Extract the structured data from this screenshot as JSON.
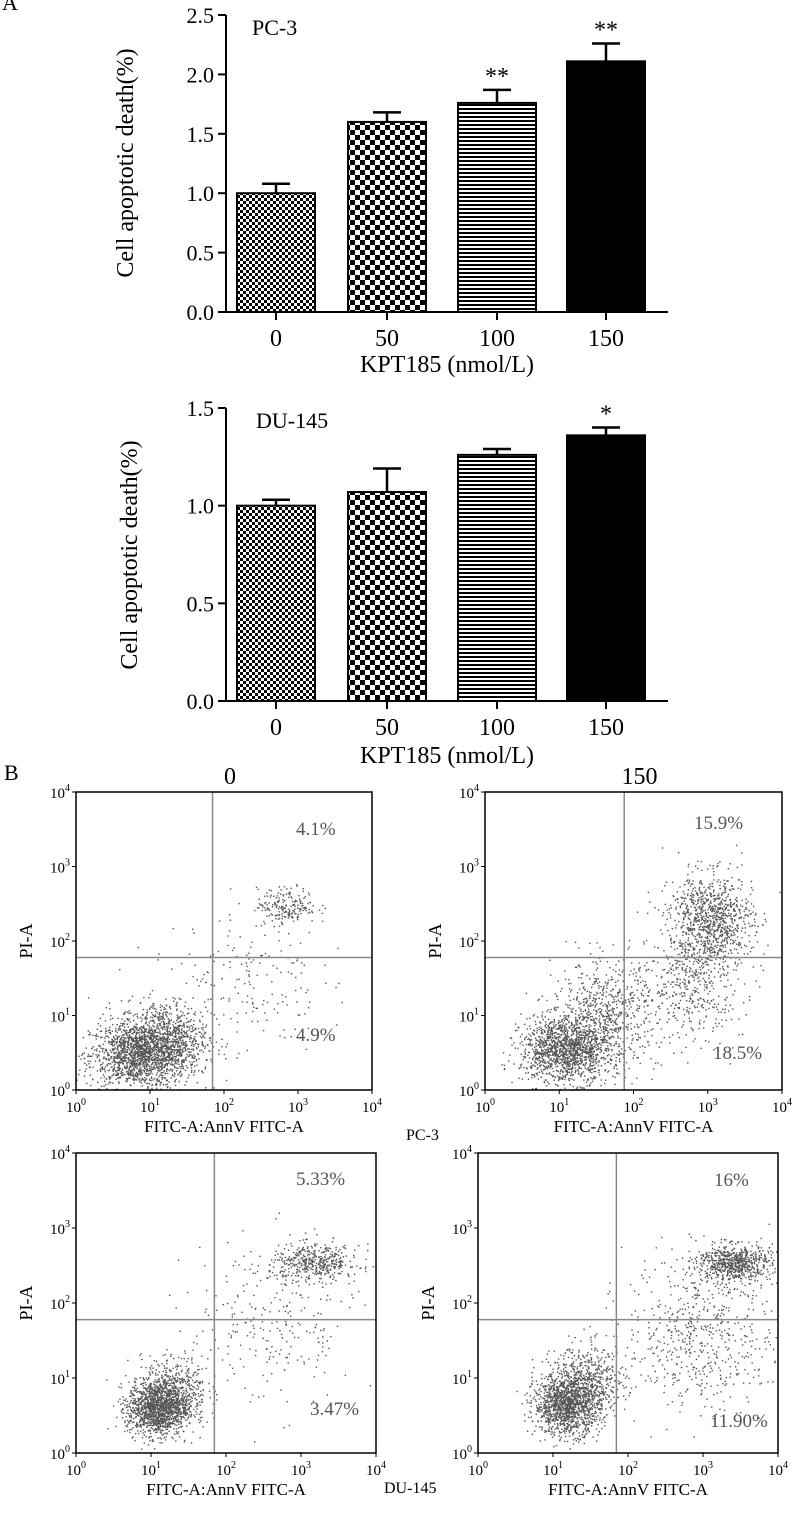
{
  "panel_labels": {
    "a": "A",
    "b": "B"
  },
  "chart_data": [
    {
      "type": "bar",
      "title": "PC-3",
      "xlabel": "KPT185 (nmol/L)",
      "ylabel": "Cell apoptotic death(%)",
      "categories": [
        "0",
        "50",
        "100",
        "150"
      ],
      "values": [
        1.0,
        1.6,
        1.76,
        2.11
      ],
      "errors": [
        0.08,
        0.08,
        0.11,
        0.15
      ],
      "significance": [
        "",
        "",
        "**",
        "**"
      ],
      "patterns": [
        "dense-checker",
        "checker",
        "horizontal-lines",
        "solid"
      ],
      "ylim": [
        0,
        2.5
      ],
      "yticks": [
        "0.0",
        "0.5",
        "1.0",
        "1.5",
        "2.0",
        "2.5"
      ],
      "grid": false
    },
    {
      "type": "bar",
      "title": "DU-145",
      "xlabel": "KPT185 (nmol/L)",
      "ylabel": "Cell apoptotic death(%)",
      "categories": [
        "0",
        "50",
        "100",
        "150"
      ],
      "values": [
        1.0,
        1.07,
        1.26,
        1.36
      ],
      "errors": [
        0.03,
        0.12,
        0.03,
        0.04
      ],
      "significance": [
        "",
        "",
        "",
        "*"
      ],
      "patterns": [
        "dense-checker",
        "checker",
        "horizontal-lines",
        "solid"
      ],
      "ylim": [
        0,
        1.5
      ],
      "yticks": [
        "0.0",
        "0.5",
        "1.0",
        "1.5"
      ],
      "grid": false
    },
    {
      "type": "scatter",
      "title": "0",
      "xlabel": "FITC-A:AnnV FITC-A",
      "ylabel": "PI-A",
      "log_scale": true,
      "xlim": [
        1,
        10000
      ],
      "ylim": [
        1,
        10000
      ],
      "tick_labels": [
        {
          "base": "10",
          "exp": "0"
        },
        {
          "base": "10",
          "exp": "1"
        },
        {
          "base": "10",
          "exp": "2"
        },
        {
          "base": "10",
          "exp": "3"
        },
        {
          "base": "10",
          "exp": "4"
        }
      ],
      "quadrant_x": 70,
      "quadrant_y": 60,
      "upper_right_percent": "4.1%",
      "lower_right_percent": "4.9%",
      "clusters": [
        {
          "cx": 7,
          "cy": 3,
          "sx": 0.33,
          "sy": 0.22,
          "n": 1500
        },
        {
          "cx": 15,
          "cy": 5,
          "sx": 0.3,
          "sy": 0.26,
          "n": 800
        },
        {
          "cx": 700,
          "cy": 300,
          "sx": 0.2,
          "sy": 0.12,
          "n": 200
        },
        {
          "cx": 200,
          "cy": 30,
          "sx": 0.5,
          "sy": 0.5,
          "n": 180
        }
      ]
    },
    {
      "type": "scatter",
      "title": "150",
      "xlabel": "FITC-A:AnnV FITC-A",
      "ylabel": "PI-A",
      "log_scale": true,
      "xlim": [
        1,
        10000
      ],
      "ylim": [
        1,
        10000
      ],
      "tick_labels": [
        {
          "base": "10",
          "exp": "0"
        },
        {
          "base": "10",
          "exp": "1"
        },
        {
          "base": "10",
          "exp": "2"
        },
        {
          "base": "10",
          "exp": "3"
        },
        {
          "base": "10",
          "exp": "4"
        }
      ],
      "quadrant_x": 75,
      "quadrant_y": 60,
      "upper_right_percent": "15.9%",
      "lower_right_percent": "18.5%",
      "group_label": "PC-3",
      "clusters": [
        {
          "cx": 12,
          "cy": 3.5,
          "sx": 0.3,
          "sy": 0.22,
          "n": 1400
        },
        {
          "cx": 40,
          "cy": 10,
          "sx": 0.35,
          "sy": 0.35,
          "n": 700
        },
        {
          "cx": 1100,
          "cy": 200,
          "sx": 0.28,
          "sy": 0.3,
          "n": 900
        },
        {
          "cx": 600,
          "cy": 30,
          "sx": 0.35,
          "sy": 0.4,
          "n": 500
        }
      ]
    },
    {
      "type": "scatter",
      "title": "",
      "xlabel": "FITC-A:AnnV FITC-A",
      "ylabel": "PI-A",
      "log_scale": true,
      "xlim": [
        1,
        10000
      ],
      "ylim": [
        1,
        10000
      ],
      "tick_labels": [
        {
          "base": "10",
          "exp": "0"
        },
        {
          "base": "10",
          "exp": "1"
        },
        {
          "base": "10",
          "exp": "2"
        },
        {
          "base": "10",
          "exp": "3"
        },
        {
          "base": "10",
          "exp": "4"
        }
      ],
      "quadrant_x": 70,
      "quadrant_y": 60,
      "upper_right_percent": "5.33%",
      "lower_right_percent": "3.47%",
      "clusters": [
        {
          "cx": 12,
          "cy": 4,
          "sx": 0.2,
          "sy": 0.18,
          "n": 1300
        },
        {
          "cx": 20,
          "cy": 7,
          "sx": 0.22,
          "sy": 0.22,
          "n": 500
        },
        {
          "cx": 1500,
          "cy": 350,
          "sx": 0.3,
          "sy": 0.12,
          "n": 450
        },
        {
          "cx": 400,
          "cy": 50,
          "sx": 0.55,
          "sy": 0.55,
          "n": 250
        }
      ]
    },
    {
      "type": "scatter",
      "title": "",
      "xlabel": "FITC-A:AnnV FITC-A",
      "ylabel": "PI-A",
      "log_scale": true,
      "xlim": [
        1,
        10000
      ],
      "ylim": [
        1,
        10000
      ],
      "tick_labels": [
        {
          "base": "10",
          "exp": "0"
        },
        {
          "base": "10",
          "exp": "1"
        },
        {
          "base": "10",
          "exp": "2"
        },
        {
          "base": "10",
          "exp": "3"
        },
        {
          "base": "10",
          "exp": "4"
        }
      ],
      "quadrant_x": 70,
      "quadrant_y": 60,
      "upper_right_percent": "16%",
      "lower_right_percent": "11.90%",
      "group_label": "DU-145",
      "clusters": [
        {
          "cx": 15,
          "cy": 4.5,
          "sx": 0.22,
          "sy": 0.2,
          "n": 1300
        },
        {
          "cx": 30,
          "cy": 9,
          "sx": 0.25,
          "sy": 0.25,
          "n": 500
        },
        {
          "cx": 2500,
          "cy": 350,
          "sx": 0.25,
          "sy": 0.12,
          "n": 700
        },
        {
          "cx": 900,
          "cy": 40,
          "sx": 0.5,
          "sy": 0.5,
          "n": 600
        }
      ]
    }
  ]
}
